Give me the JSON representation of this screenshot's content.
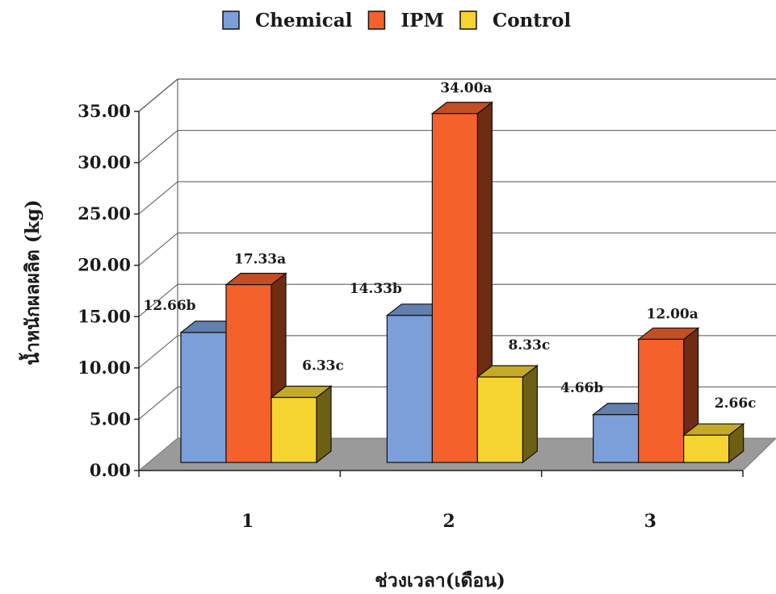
{
  "chart_data": {
    "type": "bar",
    "categories": [
      "1",
      "2",
      "3"
    ],
    "series": [
      {
        "name": "Chemical",
        "values": [
          12.66,
          14.33,
          4.66
        ],
        "labels": [
          "12.66b",
          "14.33b",
          "4.66b"
        ],
        "color": "#7b9fd9"
      },
      {
        "name": "IPM",
        "values": [
          17.33,
          34.0,
          12.0
        ],
        "labels": [
          "17.33a",
          "34.00a",
          "12.00a"
        ],
        "color": "#f4612a"
      },
      {
        "name": "Control",
        "values": [
          6.33,
          8.33,
          2.66
        ],
        "labels": [
          "6.33c",
          "8.33c",
          "2.66c"
        ],
        "color": "#f5d431"
      }
    ],
    "xlabel": "ช่วงเวลา(เดือน)",
    "ylabel": "น้ำหนักผลผลิต (kg)",
    "yticks": [
      "0.00",
      "5.00",
      "10.00",
      "15.00",
      "20.00",
      "25.00",
      "30.00",
      "35.00"
    ],
    "ylim": [
      0,
      35
    ],
    "grid": true,
    "legend_position": "top",
    "three_d": true
  }
}
